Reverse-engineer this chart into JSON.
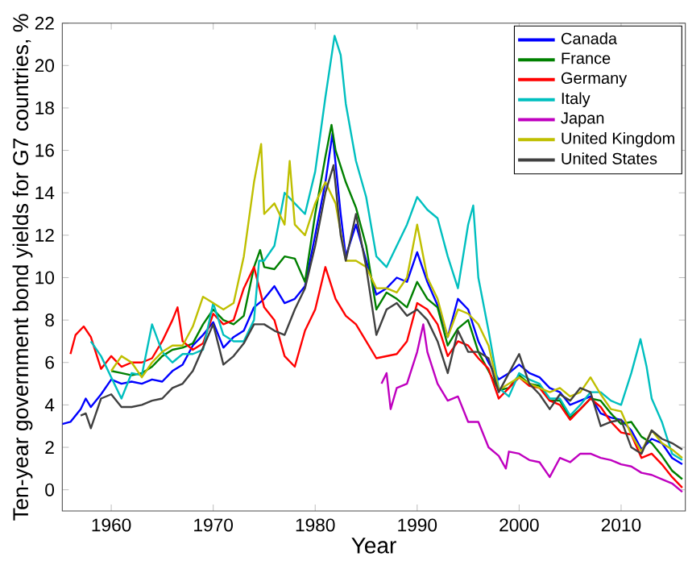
{
  "chart_data": {
    "type": "line",
    "xlabel": "Year",
    "ylabel": "Ten-year government bond yields for G7 countries, %",
    "xlim": [
      1955.2,
      2016.3
    ],
    "ylim": [
      -1,
      22
    ],
    "xticks": [
      1960,
      1970,
      1980,
      1990,
      2000,
      2010
    ],
    "yticks": [
      0,
      2,
      4,
      6,
      8,
      10,
      12,
      14,
      16,
      18,
      20,
      22
    ],
    "legend": "top right",
    "grid": false,
    "marker": "none",
    "line_style": "solid",
    "series": [
      {
        "name": "Canada",
        "color": "#0000ff",
        "x": [
          1955.2,
          1956,
          1957,
          1957.5,
          1958,
          1959,
          1960,
          1961,
          1962,
          1963,
          1964,
          1965,
          1966,
          1967,
          1968,
          1969,
          1970,
          1971,
          1972,
          1973,
          1974,
          1975,
          1976,
          1977,
          1978,
          1979,
          1980,
          1981,
          1981.7,
          1982.5,
          1983,
          1984,
          1985,
          1986,
          1987,
          1988,
          1989,
          1990,
          1991,
          1992,
          1993,
          1994,
          1995,
          1996,
          1997,
          1998,
          1999,
          2000,
          2001,
          2002,
          2003,
          2004,
          2005,
          2006,
          2007,
          2008,
          2009,
          2010,
          2011,
          2012,
          2013,
          2014,
          2015,
          2016
        ],
        "values": [
          3.1,
          3.2,
          3.8,
          4.3,
          3.9,
          4.5,
          5.2,
          5.0,
          5.1,
          5.0,
          5.2,
          5.1,
          5.6,
          5.9,
          6.8,
          7.3,
          7.9,
          6.7,
          7.2,
          7.5,
          8.6,
          9.0,
          9.6,
          8.8,
          9.0,
          9.6,
          12.0,
          14.5,
          16.8,
          13.0,
          11.0,
          12.5,
          10.8,
          9.2,
          9.5,
          10.0,
          9.8,
          11.2,
          9.8,
          8.7,
          7.2,
          9.0,
          8.5,
          7.0,
          6.0,
          5.2,
          5.5,
          5.9,
          5.5,
          5.3,
          4.8,
          4.6,
          4.0,
          4.2,
          4.4,
          3.6,
          3.4,
          3.3,
          2.8,
          1.9,
          2.4,
          2.2,
          1.5,
          1.2
        ]
      },
      {
        "name": "France",
        "color": "#008000",
        "x": [
          1960,
          1961,
          1962,
          1963,
          1964,
          1965,
          1966,
          1967,
          1968,
          1969,
          1970,
          1971,
          1972,
          1973,
          1974,
          1974.6,
          1975,
          1976,
          1977,
          1978,
          1979,
          1980,
          1981,
          1981.6,
          1982,
          1983,
          1984,
          1985,
          1986,
          1987,
          1988,
          1989,
          1990,
          1991,
          1992,
          1993,
          1994,
          1995,
          1996,
          1997,
          1998,
          1999,
          2000,
          2001,
          2002,
          2003,
          2004,
          2005,
          2006,
          2007,
          2008,
          2009,
          2010,
          2011,
          2012,
          2013,
          2014,
          2015,
          2016
        ],
        "values": [
          5.6,
          5.5,
          5.4,
          5.5,
          5.8,
          6.3,
          6.6,
          6.7,
          6.9,
          7.8,
          8.5,
          8.0,
          7.8,
          8.2,
          10.5,
          11.3,
          10.5,
          10.4,
          11.0,
          10.9,
          9.8,
          13.0,
          15.7,
          17.2,
          16.0,
          14.5,
          13.3,
          11.5,
          8.5,
          9.3,
          9.0,
          8.6,
          9.8,
          9.0,
          8.6,
          6.8,
          7.6,
          8.0,
          6.5,
          5.6,
          4.7,
          4.8,
          5.4,
          5.0,
          4.9,
          4.2,
          4.2,
          3.4,
          3.8,
          4.3,
          4.2,
          3.6,
          3.1,
          3.2,
          2.5,
          2.2,
          1.6,
          0.9,
          0.5
        ]
      },
      {
        "name": "Germany",
        "color": "#ff0000",
        "x": [
          1956,
          1956.5,
          1957.3,
          1958,
          1959,
          1960,
          1961,
          1962,
          1963,
          1964,
          1965,
          1966,
          1966.5,
          1967,
          1968,
          1969,
          1970,
          1971,
          1972,
          1973,
          1974,
          1975,
          1976,
          1977,
          1978,
          1979,
          1980,
          1981,
          1982,
          1983,
          1984,
          1985,
          1986,
          1987,
          1988,
          1989,
          1990,
          1991,
          1992,
          1993,
          1994,
          1995,
          1996,
          1997,
          1998,
          1999,
          2000,
          2001,
          2002,
          2003,
          2004,
          2005,
          2006,
          2007,
          2008,
          2009,
          2010,
          2011,
          2012,
          2013,
          2014,
          2015,
          2016
        ],
        "values": [
          6.4,
          7.3,
          7.7,
          7.2,
          5.7,
          6.3,
          5.8,
          6.0,
          6.0,
          6.2,
          7.0,
          8.0,
          8.6,
          7.0,
          6.6,
          6.9,
          8.3,
          7.8,
          8.0,
          9.5,
          10.5,
          8.6,
          8.0,
          6.3,
          5.8,
          7.5,
          8.5,
          10.5,
          9.0,
          8.2,
          7.8,
          7.0,
          6.2,
          6.3,
          6.4,
          7.0,
          8.8,
          8.5,
          7.8,
          6.3,
          7.0,
          6.8,
          6.2,
          5.7,
          4.3,
          4.8,
          5.3,
          4.9,
          4.8,
          4.2,
          4.0,
          3.3,
          3.8,
          4.3,
          3.9,
          3.2,
          2.7,
          2.6,
          1.5,
          1.7,
          1.2,
          0.6,
          0.1
        ]
      },
      {
        "name": "Italy",
        "color": "#00bfbf",
        "x": [
          1958,
          1959,
          1960,
          1961,
          1962,
          1963,
          1964,
          1965,
          1966,
          1967,
          1968,
          1969,
          1970,
          1971,
          1972,
          1973,
          1974,
          1974.5,
          1975,
          1976,
          1977,
          1978,
          1979,
          1980,
          1981,
          1981.9,
          1982.5,
          1983,
          1984,
          1985,
          1986,
          1987,
          1988,
          1989,
          1990,
          1991,
          1992,
          1993,
          1994,
          1995,
          1995.5,
          1996,
          1997,
          1998,
          1999,
          2000,
          2001,
          2002,
          2003,
          2004,
          2005,
          2006,
          2007,
          2008,
          2009,
          2010,
          2011,
          2011.9,
          2012.5,
          2013,
          2014,
          2015,
          2016
        ],
        "values": [
          7.0,
          6.3,
          5.3,
          4.3,
          5.5,
          5.4,
          7.8,
          6.5,
          6.0,
          6.4,
          6.4,
          6.6,
          8.8,
          7.3,
          7.0,
          7.0,
          8.0,
          10.8,
          10.8,
          11.5,
          14.0,
          13.5,
          13.0,
          15.0,
          18.5,
          21.4,
          20.5,
          18.2,
          15.5,
          13.8,
          11.0,
          10.5,
          11.5,
          12.5,
          13.8,
          13.2,
          12.8,
          11.0,
          9.5,
          12.5,
          13.4,
          10.0,
          7.5,
          4.8,
          4.4,
          5.5,
          5.2,
          5.0,
          4.3,
          4.3,
          3.5,
          4.0,
          4.6,
          4.6,
          4.2,
          4.0,
          5.5,
          7.1,
          5.8,
          4.3,
          3.2,
          1.7,
          1.4
        ]
      },
      {
        "name": "Japan",
        "color": "#bf00bf",
        "x": [
          1986.5,
          1987,
          1987.4,
          1988,
          1989,
          1990,
          1990.6,
          1991,
          1992,
          1993,
          1994,
          1995,
          1996,
          1997,
          1998,
          1998.7,
          1999,
          2000,
          2001,
          2002,
          2003,
          2004,
          2005,
          2006,
          2007,
          2008,
          2009,
          2010,
          2011,
          2012,
          2013,
          2014,
          2015,
          2016
        ],
        "values": [
          5.0,
          5.5,
          3.8,
          4.8,
          5.0,
          6.5,
          7.8,
          6.5,
          5.0,
          4.2,
          4.4,
          3.2,
          3.2,
          2.0,
          1.6,
          1.0,
          1.8,
          1.7,
          1.4,
          1.3,
          0.6,
          1.5,
          1.3,
          1.7,
          1.7,
          1.5,
          1.4,
          1.2,
          1.1,
          0.8,
          0.7,
          0.5,
          0.3,
          -0.1
        ]
      },
      {
        "name": "United Kingdom",
        "color": "#bfbf00",
        "x": [
          1960,
          1961,
          1962,
          1963,
          1964,
          1965,
          1966,
          1967,
          1968,
          1969,
          1970,
          1971,
          1972,
          1973,
          1974,
          1974.7,
          1975,
          1976,
          1977,
          1977.5,
          1978,
          1979,
          1980,
          1981,
          1982,
          1983,
          1984,
          1985,
          1986,
          1987,
          1988,
          1989,
          1990,
          1991,
          1992,
          1993,
          1994,
          1995,
          1996,
          1997,
          1998,
          1999,
          2000,
          2001,
          2002,
          2003,
          2004,
          2005,
          2006,
          2007,
          2008,
          2009,
          2010,
          2011,
          2012,
          2013,
          2014,
          2015,
          2016
        ],
        "values": [
          5.6,
          6.3,
          6.0,
          5.3,
          6.0,
          6.5,
          6.8,
          6.8,
          7.7,
          9.1,
          8.8,
          8.5,
          8.8,
          11.0,
          14.5,
          16.3,
          13.0,
          13.5,
          12.5,
          15.5,
          12.5,
          12.0,
          13.5,
          14.5,
          13.5,
          10.8,
          10.8,
          10.5,
          9.5,
          9.5,
          9.3,
          10.0,
          12.5,
          10.0,
          9.0,
          7.2,
          8.5,
          8.3,
          7.8,
          6.8,
          4.7,
          5.0,
          5.3,
          5.0,
          4.8,
          4.6,
          4.8,
          4.4,
          4.6,
          5.3,
          4.5,
          3.8,
          3.7,
          2.6,
          1.8,
          2.8,
          2.2,
          1.9,
          1.5
        ]
      },
      {
        "name": "United States",
        "color": "#404040",
        "x": [
          1957,
          1957.5,
          1958,
          1959,
          1960,
          1961,
          1962,
          1963,
          1964,
          1965,
          1966,
          1967,
          1968,
          1969,
          1970,
          1971,
          1972,
          1973,
          1974,
          1975,
          1976,
          1977,
          1978,
          1979,
          1980,
          1981,
          1981.8,
          1982.5,
          1983,
          1984,
          1985,
          1986,
          1987,
          1988,
          1989,
          1990,
          1991,
          1992,
          1993,
          1994,
          1995,
          1996,
          1997,
          1998,
          1999,
          2000,
          2001,
          2002,
          2003,
          2004,
          2005,
          2006,
          2007,
          2008,
          2009,
          2010,
          2011,
          2012,
          2013,
          2014,
          2015,
          2016
        ],
        "values": [
          3.5,
          3.6,
          2.9,
          4.3,
          4.5,
          3.9,
          3.9,
          4.0,
          4.2,
          4.3,
          4.8,
          5.0,
          5.6,
          6.7,
          7.8,
          5.9,
          6.3,
          6.9,
          7.8,
          7.8,
          7.5,
          7.3,
          8.5,
          9.5,
          11.5,
          14.0,
          15.3,
          12.0,
          10.8,
          13.0,
          10.5,
          7.3,
          8.5,
          8.8,
          8.2,
          8.5,
          8.0,
          7.0,
          5.5,
          7.5,
          6.5,
          6.5,
          6.2,
          4.6,
          5.5,
          6.4,
          5.0,
          4.5,
          3.8,
          4.5,
          4.2,
          4.8,
          4.6,
          3.0,
          3.2,
          3.3,
          2.0,
          1.7,
          2.8,
          2.4,
          2.2,
          1.9
        ]
      }
    ]
  }
}
